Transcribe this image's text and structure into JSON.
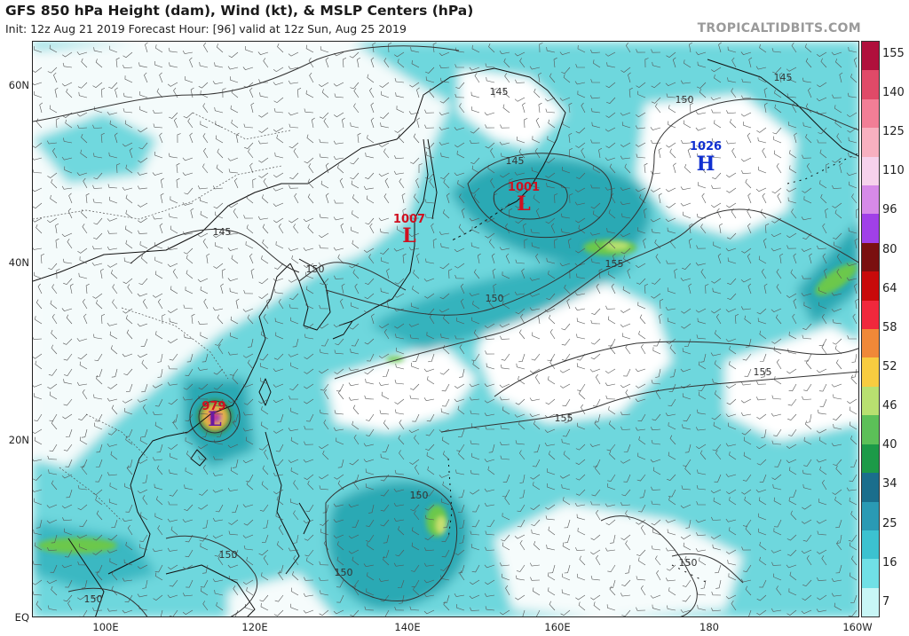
{
  "header": {
    "title": "GFS 850 hPa Height (dam), Wind (kt), & MSLP Centers (hPa)",
    "subtitle": "Init: 12z Aug 21 2019   Forecast Hour: [96]   valid at 12z Sun, Aug 25 2019",
    "brand": "TROPICALTIDBITS.COM"
  },
  "map": {
    "lat_labels": [
      "60N",
      "40N",
      "20N",
      "EQ"
    ],
    "lon_labels": [
      "100E",
      "120E",
      "140E",
      "160E",
      "180",
      "160W"
    ],
    "contour_labels": [
      "145",
      "145",
      "145",
      "145",
      "150",
      "150",
      "150",
      "150",
      "150",
      "150",
      "150",
      "150",
      "155",
      "155",
      "155"
    ],
    "pressure_centers": [
      {
        "type": "L",
        "value": "1001",
        "color": "#d01020"
      },
      {
        "type": "L",
        "value": "1007",
        "color": "#d01020"
      },
      {
        "type": "L",
        "value": "979",
        "color": "#d01020"
      },
      {
        "type": "H",
        "value": "1026",
        "color": "#1030d0"
      }
    ]
  },
  "colorbar": {
    "labels": [
      "155",
      "140",
      "125",
      "110",
      "96",
      "80",
      "64",
      "58",
      "52",
      "46",
      "40",
      "34",
      "25",
      "16",
      "7"
    ],
    "colors": [
      "#b0103c",
      "#e04a68",
      "#f27e96",
      "#f8b0c0",
      "#f6d2ec",
      "#d68ae8",
      "#a040e8",
      "#7a1010",
      "#c80a0a",
      "#f0283c",
      "#f08838",
      "#f8cc40",
      "#b8e070",
      "#5cc058",
      "#1c9a48",
      "#1a6e8c",
      "#2a9ab4",
      "#3cc2d0",
      "#70e0e6",
      "#c8f6f6"
    ]
  },
  "legend_wind_units": "kt",
  "legend_height_units": "dam"
}
